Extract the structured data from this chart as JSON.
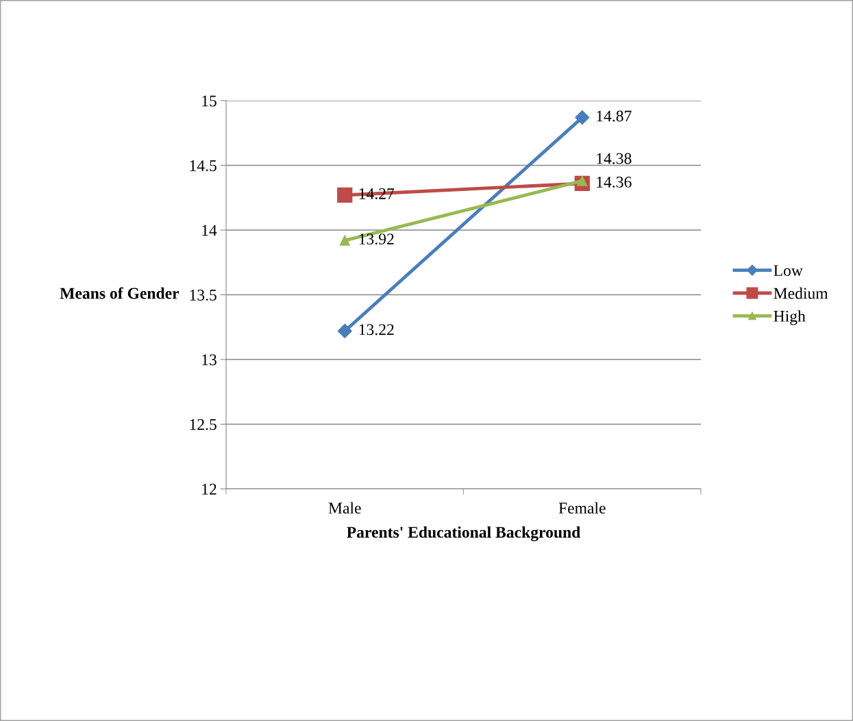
{
  "chart_data": {
    "type": "line",
    "xlabel": "Parents' Educational Background",
    "ylabel": "Means of Gender",
    "categories": [
      "Male",
      "Female"
    ],
    "series": [
      {
        "name": "Low",
        "color": "#4a7ebb",
        "values": [
          13.22,
          14.87
        ],
        "marker": "diamond"
      },
      {
        "name": "Medium",
        "color": "#be4b48",
        "values": [
          14.27,
          14.36
        ],
        "marker": "square"
      },
      {
        "name": "High",
        "color": "#98b954",
        "values": [
          13.92,
          14.38
        ],
        "marker": "triangle"
      }
    ],
    "ylim": [
      12,
      15
    ],
    "yticks": [
      12,
      12.5,
      13,
      13.5,
      14,
      14.5,
      15
    ],
    "grid": "y",
    "legend": "right",
    "data_labels": true
  }
}
